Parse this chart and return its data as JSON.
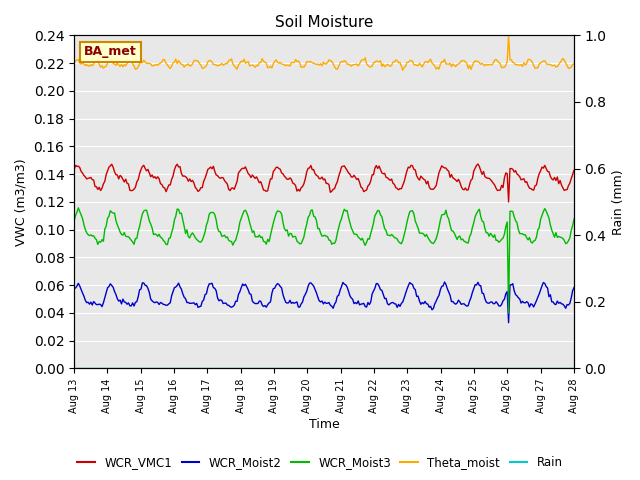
{
  "title": "Soil Moisture",
  "ylabel_left": "VWC (m3/m3)",
  "ylabel_right": "Rain (mm)",
  "xlabel": "Time",
  "ylim_left": [
    0.0,
    0.24
  ],
  "ylim_right": [
    0.0,
    1.0
  ],
  "yticks_left": [
    0.0,
    0.02,
    0.04,
    0.06,
    0.08,
    0.1,
    0.12,
    0.14,
    0.16,
    0.18,
    0.2,
    0.22,
    0.24
  ],
  "yticks_right": [
    0.0,
    0.2,
    0.4,
    0.6,
    0.8,
    1.0
  ],
  "colors": {
    "WCR_VMC1": "#cc0000",
    "WCR_Moist2": "#0000cc",
    "WCR_Moist3": "#00bb00",
    "Theta_moist": "#ffaa00",
    "Rain": "#00cccc"
  },
  "bg_color": "#e8e8e8",
  "label_box": "BA_met",
  "label_box_bg": "#ffffcc",
  "label_box_border": "#cc8800",
  "spike_day": 13.0,
  "n_days": 15,
  "xtick_labels": [
    "Aug 13",
    "Aug 14",
    "Aug 15",
    "Aug 16",
    "Aug 17",
    "Aug 18",
    "Aug 19",
    "Aug 20",
    "Aug 21",
    "Aug 22",
    "Aug 23",
    "Aug 24",
    "Aug 25",
    "Aug 26",
    "Aug 27",
    "Aug 28"
  ]
}
